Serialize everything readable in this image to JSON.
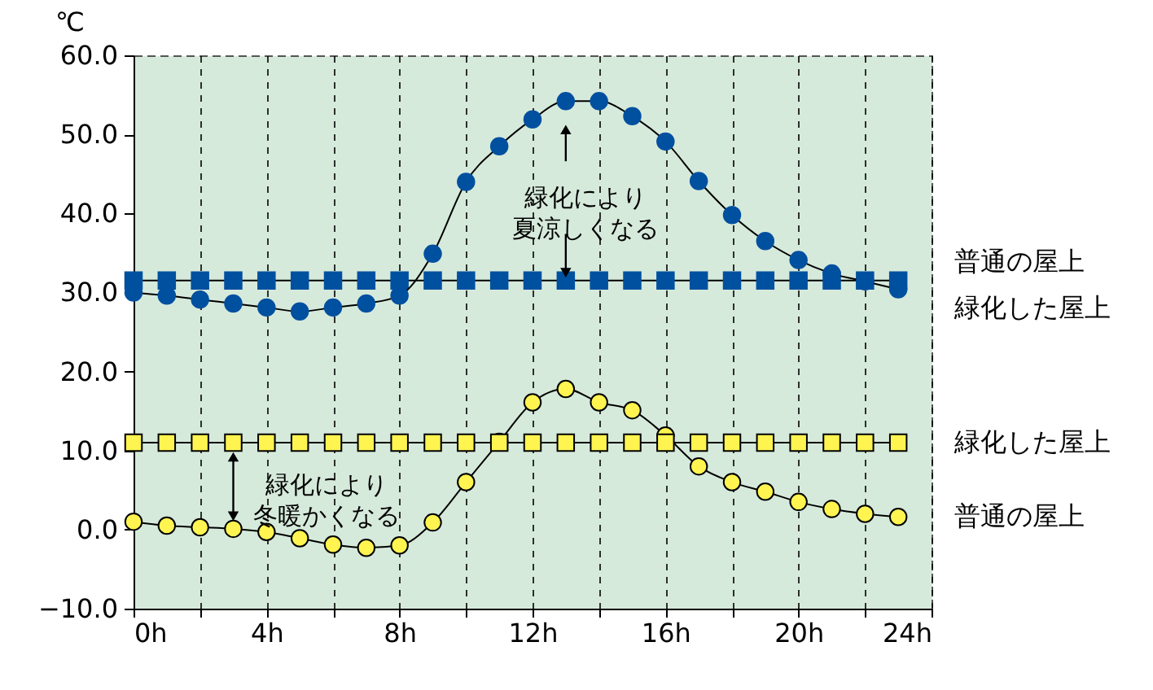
{
  "chart_data": {
    "type": "line",
    "ylabel": "℃",
    "x": [
      0,
      1,
      2,
      3,
      4,
      5,
      6,
      7,
      8,
      9,
      10,
      11,
      12,
      13,
      14,
      15,
      16,
      17,
      18,
      19,
      20,
      21,
      22,
      23
    ],
    "series": [
      {
        "name": "普通の屋上",
        "color": "#0050a0",
        "marker": "circle",
        "values": [
          30.0,
          29.6,
          29.1,
          28.6,
          28.1,
          27.6,
          28.1,
          28.6,
          29.6,
          34.9,
          44.0,
          48.5,
          51.9,
          54.2,
          54.2,
          52.3,
          49.1,
          44.1,
          39.8,
          36.5,
          34.1,
          32.4,
          31.4,
          30.4
        ]
      },
      {
        "name": "緑化した屋上",
        "color": "#0050a0",
        "marker": "square",
        "values": [
          31.5,
          31.5,
          31.5,
          31.5,
          31.5,
          31.5,
          31.5,
          31.5,
          31.5,
          31.5,
          31.5,
          31.5,
          31.5,
          31.5,
          31.5,
          31.5,
          31.5,
          31.5,
          31.5,
          31.5,
          31.5,
          31.5,
          31.5,
          31.5
        ]
      },
      {
        "name": "緑化した屋上",
        "color": "#fff450",
        "marker": "square",
        "values": [
          11.0,
          11.0,
          11.0,
          11.0,
          11.0,
          11.0,
          11.0,
          11.0,
          11.0,
          11.0,
          11.0,
          11.0,
          11.0,
          11.0,
          11.0,
          11.0,
          11.0,
          11.0,
          11.0,
          11.0,
          11.0,
          11.0,
          11.0,
          11.0
        ]
      },
      {
        "name": "普通の屋上",
        "color": "#fff450",
        "marker": "circle",
        "values": [
          1.0,
          0.5,
          0.3,
          0.1,
          -0.3,
          -1.1,
          -1.9,
          -2.3,
          -2.0,
          0.9,
          6.0,
          11.1,
          16.1,
          17.8,
          16.1,
          15.1,
          11.9,
          8.0,
          6.0,
          4.8,
          3.5,
          2.6,
          2.0,
          1.6
        ]
      }
    ],
    "annotations": [
      {
        "text": "緑化により夏涼しくなる",
        "x": 13,
        "y": 31.5
      },
      {
        "text": "緑化により冬暖かくなる",
        "x": 3,
        "y": 11.0
      }
    ],
    "xlim": [
      0,
      24
    ],
    "xticks": [
      {
        "value": 0,
        "label": "0h"
      },
      {
        "value": 2,
        "label": null
      },
      {
        "value": 4,
        "label": "4h"
      },
      {
        "value": 6,
        "label": null
      },
      {
        "value": 8,
        "label": "8h"
      },
      {
        "value": 10,
        "label": null
      },
      {
        "value": 12,
        "label": "12h"
      },
      {
        "value": 14,
        "label": null
      },
      {
        "value": 16,
        "label": "16h"
      },
      {
        "value": 18,
        "label": null
      },
      {
        "value": 20,
        "label": "20h"
      },
      {
        "value": 22,
        "label": null
      },
      {
        "value": 24,
        "label": "24h"
      }
    ],
    "ylim": [
      -10,
      60
    ],
    "yticks": [
      {
        "value": -10,
        "label": "−10.0"
      },
      {
        "value": 0,
        "label": "0.0"
      },
      {
        "value": 10,
        "label": "10.0"
      },
      {
        "value": 20,
        "label": "20.0"
      },
      {
        "value": 30,
        "label": "30.0"
      },
      {
        "value": 40,
        "label": "40.0"
      },
      {
        "value": 50,
        "label": "50.0"
      },
      {
        "value": 60,
        "label": "60.0"
      }
    ],
    "grid": "x",
    "line_style": "solid"
  }
}
